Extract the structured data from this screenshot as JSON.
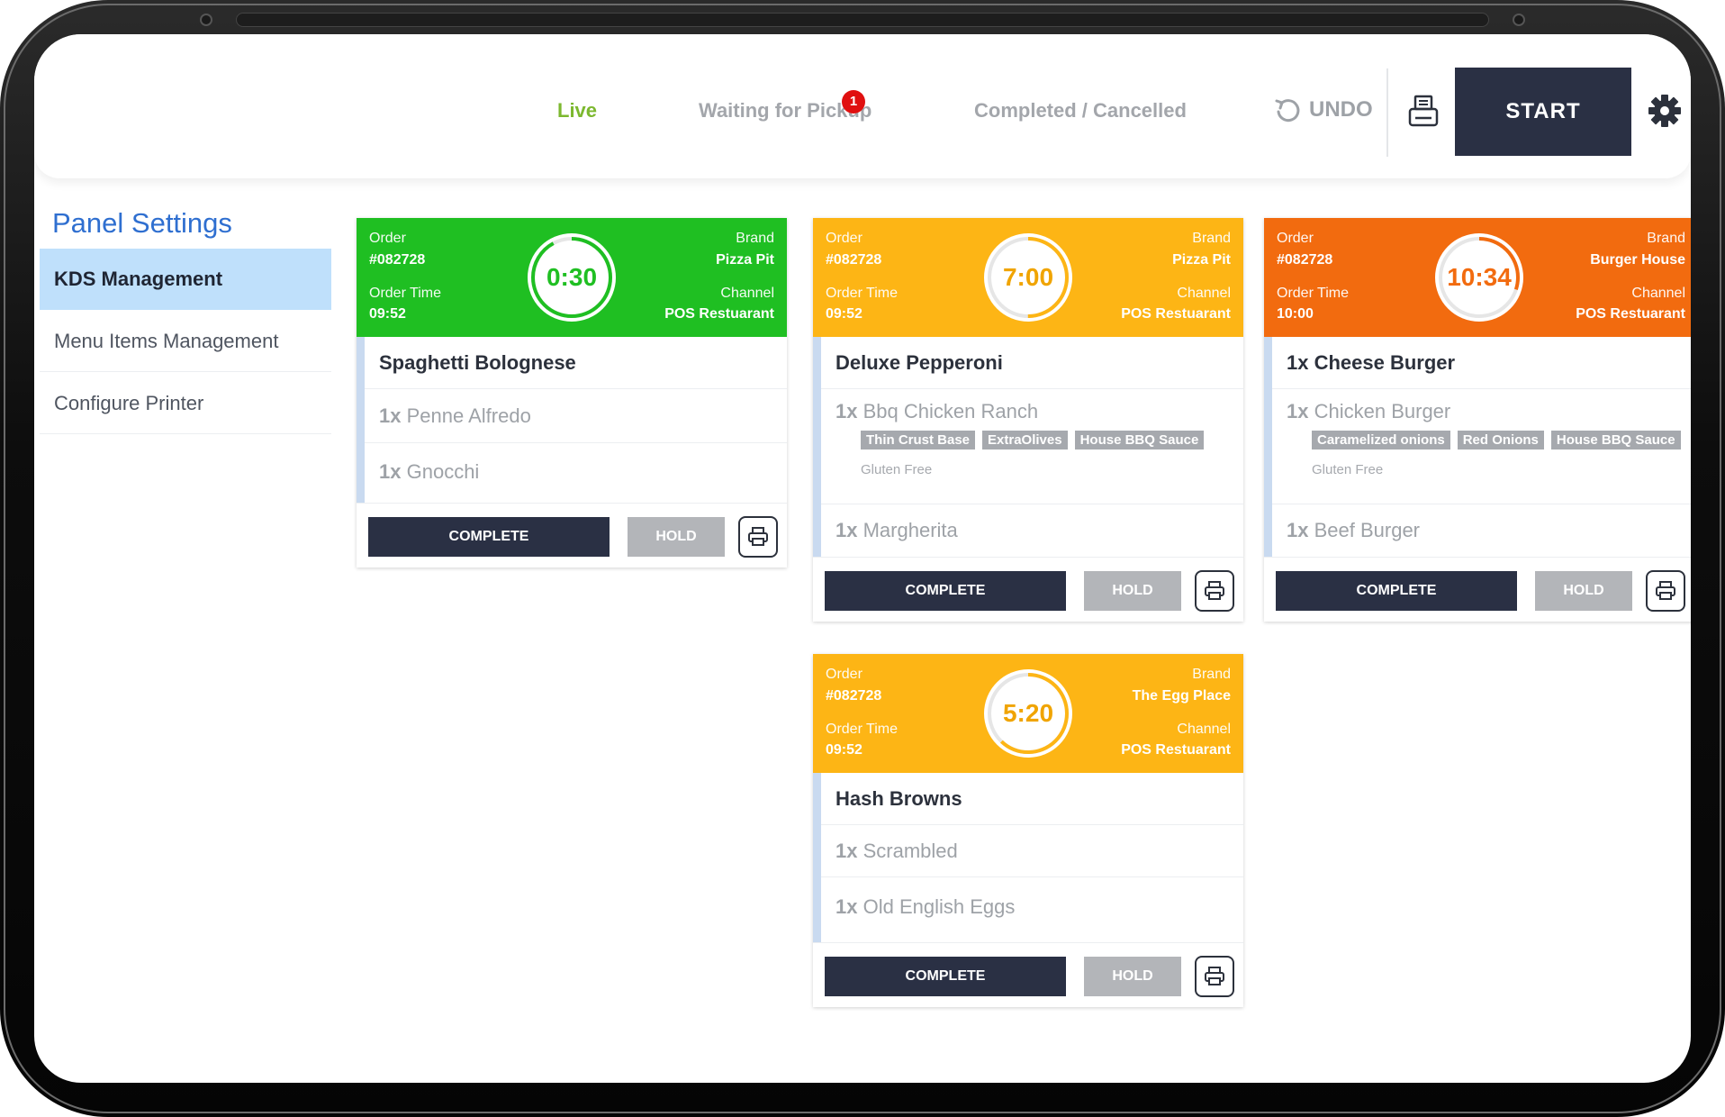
{
  "header": {
    "tabs": [
      {
        "label": "Live",
        "active": true
      },
      {
        "label": "Waiting for Pickup",
        "badge": "1"
      },
      {
        "label": "Completed / Cancelled"
      }
    ],
    "undo_label": "UNDO",
    "start_label": "START"
  },
  "sidebar": {
    "title": "Panel Settings",
    "items": [
      {
        "label": "KDS Management",
        "active": true
      },
      {
        "label": "Menu Items Management"
      },
      {
        "label": "Configure Printer"
      }
    ]
  },
  "colors": {
    "green": "#1fbf22",
    "amber": "#fdb515",
    "orange": "#f26b0f",
    "navy": "#2a3044",
    "accent_blue": "#2f6fd0"
  },
  "labels": {
    "order": "Order",
    "order_time": "Order Time",
    "brand": "Brand",
    "channel": "Channel",
    "complete": "COMPLETE",
    "hold": "HOLD"
  },
  "orders": [
    {
      "order_no": "#082728",
      "time": "09:52",
      "timer": "0:30",
      "progress": 0.92,
      "brand": "Pizza Pit",
      "channel": "POS Restuarant",
      "title": "Spaghetti Bolognese",
      "items": [
        {
          "qty": "1x",
          "name": "Penne Alfredo"
        },
        {
          "qty": "1x",
          "name": "Gnocchi"
        }
      ]
    },
    {
      "order_no": "#082728",
      "time": "09:52",
      "timer": "7:00",
      "progress": 0.5,
      "brand": "Pizza Pit",
      "channel": "POS Restuarant",
      "title": "Deluxe Pepperoni",
      "items": [
        {
          "qty": "1x",
          "name": "Bbq Chicken Ranch",
          "mods": [
            "Thin Crust Base",
            "ExtraOlives",
            "House BBQ Sauce"
          ],
          "note": "Gluten Free"
        },
        {
          "qty": "1x",
          "name": "Margherita"
        }
      ]
    },
    {
      "order_no": "#082728",
      "time": "10:00",
      "timer": "10:34",
      "progress": 0.3,
      "brand": "Burger House",
      "channel": "POS Restuarant",
      "title": "1x Cheese Burger",
      "items": [
        {
          "qty": "1x",
          "name": "Chicken Burger",
          "mods": [
            "Caramelized onions",
            "Red Onions",
            "House BBQ Sauce"
          ],
          "note": "Gluten Free"
        },
        {
          "qty": "1x",
          "name": "Beef Burger"
        }
      ]
    },
    {
      "order_no": "#082728",
      "time": "09:52",
      "timer": "5:20",
      "progress": 0.62,
      "brand": "The Egg Place",
      "channel": "POS Restuarant",
      "title": "Hash Browns",
      "items": [
        {
          "qty": "1x",
          "name": "Scrambled"
        },
        {
          "qty": "1x",
          "name": "Old English Eggs"
        }
      ]
    }
  ]
}
